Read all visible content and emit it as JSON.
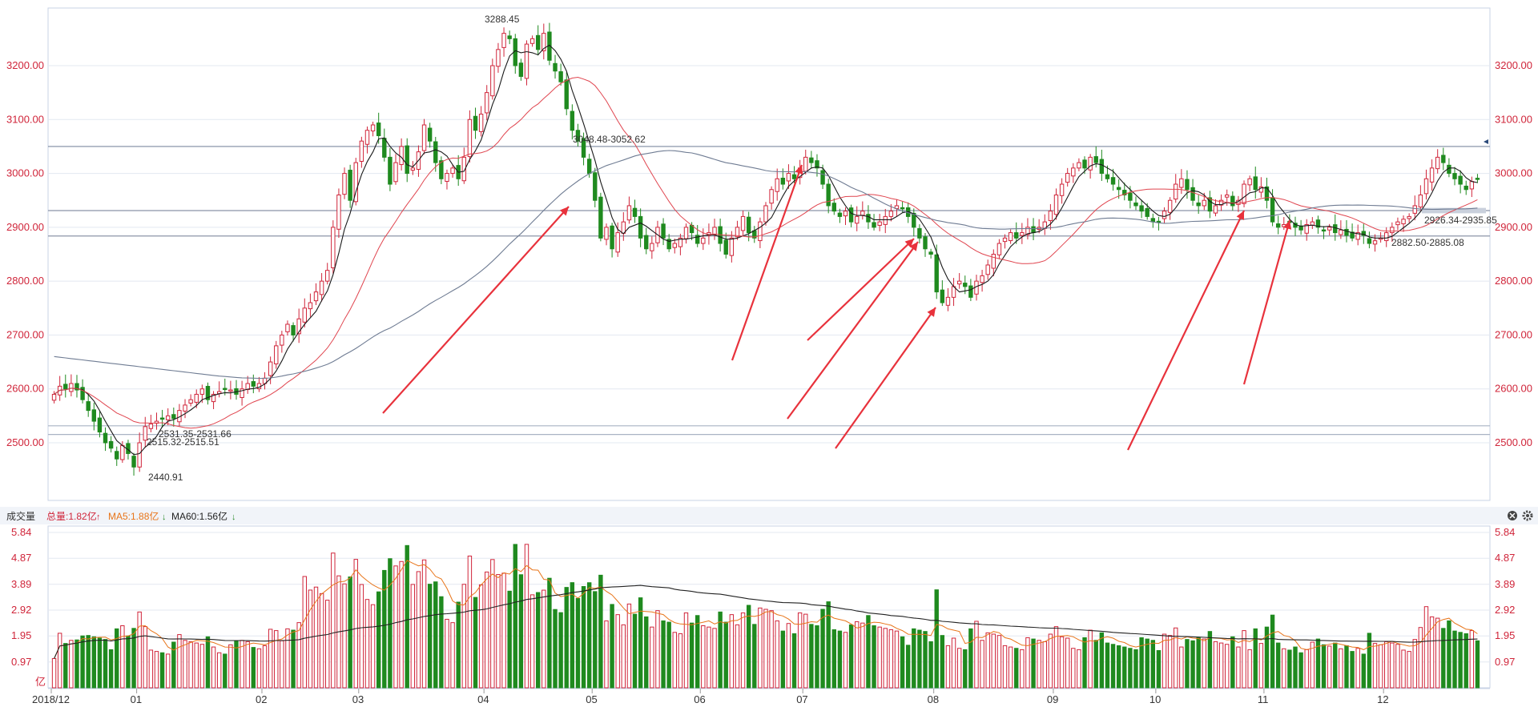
{
  "price_panel": {
    "y_ticks": [
      "3200.00",
      "3100.00",
      "3000.00",
      "2900.00",
      "2800.00",
      "2700.00",
      "2600.00",
      "2500.00"
    ],
    "annotations": {
      "high": "3288.45",
      "low": "2440.91",
      "band_high": "3048.48-3052.62",
      "band_low_1": "2531.35-2531.66",
      "band_low_2": "2515.32-2515.51",
      "band_mid_1": "2926.34-2935.85",
      "band_mid_2": "2882.50-2885.08"
    }
  },
  "volume_panel": {
    "title": "成交量",
    "total_label": "总量:1.82亿",
    "ma5_label": "MA5:1.88亿",
    "ma60_label": "MA60:1.56亿",
    "y_ticks": [
      "5.84",
      "4.87",
      "3.89",
      "2.92",
      "1.95",
      "0.97"
    ],
    "unit": "亿",
    "colors": {
      "total": "#d0253a",
      "ma5": "#e8751a",
      "ma60": "#222222"
    }
  },
  "x_axis": {
    "labels": [
      "2018/12",
      "01",
      "02",
      "03",
      "04",
      "05",
      "06",
      "07",
      "08",
      "09",
      "10",
      "11",
      "12"
    ]
  },
  "chart_data": {
    "type": "candlestick",
    "price_range": [
      2420,
      3300
    ],
    "volume_range": [
      0,
      5.84
    ],
    "months": [
      {
        "label": "2018/12",
        "start": 0,
        "closes": [
          2590,
          2605,
          2600,
          2610,
          2598,
          2580,
          2560,
          2540,
          2520,
          2500,
          2490,
          2470,
          2495,
          2480,
          2455
        ]
      },
      {
        "label": "01",
        "start": 15,
        "closes": [
          2500,
          2530,
          2535,
          2540,
          2545,
          2550,
          2545,
          2560,
          2570,
          2580,
          2590,
          2600,
          2580,
          2590,
          2595,
          2600,
          2598,
          2590,
          2600,
          2610,
          2605,
          2610
        ]
      },
      {
        "label": "02",
        "start": 37,
        "closes": [
          2620,
          2650,
          2680,
          2700,
          2720,
          2700,
          2730,
          2750,
          2760,
          2780,
          2800,
          2820,
          2900,
          2960,
          3000,
          2950,
          3020
        ]
      },
      {
        "label": "03",
        "start": 54,
        "closes": [
          3060,
          3080,
          3090,
          3070,
          3030,
          2980,
          3020,
          3050,
          3000,
          3010,
          3040,
          3090,
          3060,
          3020,
          2990,
          3000,
          3010,
          2990,
          3030,
          3100,
          3080,
          3110
        ]
      },
      {
        "label": "04",
        "start": 76,
        "closes": [
          3150,
          3200,
          3230,
          3260,
          3250,
          3200,
          3180,
          3240,
          3250,
          3230,
          3260,
          3210,
          3190,
          3170,
          3120,
          3080,
          3060,
          3030,
          3000
        ]
      },
      {
        "label": "05",
        "start": 95,
        "closes": [
          2950,
          2880,
          2900,
          2860,
          2890,
          2910,
          2940,
          2920,
          2880,
          2860,
          2870,
          2900,
          2880,
          2860,
          2870,
          2880,
          2900,
          2890,
          2870
        ]
      },
      {
        "label": "06",
        "start": 114,
        "closes": [
          2880,
          2890,
          2900,
          2870,
          2850,
          2880,
          2900,
          2920,
          2890,
          2880,
          2910,
          2940,
          2970,
          2990,
          2980,
          3000,
          2990,
          3010
        ]
      },
      {
        "label": "07",
        "start": 132,
        "closes": [
          3030,
          3020,
          3010,
          2980,
          2940,
          2930,
          2920,
          2930,
          2910,
          2920,
          2930,
          2910,
          2900,
          2910,
          2920,
          2930,
          2940,
          2935,
          2920,
          2900,
          2880,
          2860,
          2850
        ]
      },
      {
        "label": "08",
        "start": 155,
        "closes": [
          2780,
          2760,
          2770,
          2790,
          2800,
          2790,
          2770,
          2800,
          2810,
          2830,
          2850,
          2870,
          2880,
          2890,
          2880,
          2890,
          2900,
          2890,
          2900,
          2910,
          2930
        ]
      },
      {
        "label": "09",
        "start": 176,
        "closes": [
          2960,
          2980,
          3000,
          3010,
          3020,
          3010,
          3030,
          3020,
          3000,
          2990,
          2980,
          2970,
          2960,
          2950,
          2940,
          2930,
          2920,
          2910
        ]
      },
      {
        "label": "10",
        "start": 194,
        "closes": [
          2910,
          2930,
          2950,
          2980,
          2990,
          2970,
          2950,
          2940,
          2950,
          2930,
          2940,
          2950,
          2960,
          2940,
          2950,
          2980,
          2990,
          2970,
          2975
        ]
      },
      {
        "label": "11",
        "start": 213,
        "closes": [
          2950,
          2910,
          2900,
          2905,
          2910,
          2900,
          2895,
          2905,
          2910,
          2900,
          2895,
          2900,
          2890,
          2895,
          2885,
          2880,
          2890,
          2885,
          2870,
          2875,
          2880
        ]
      },
      {
        "label": "12",
        "start": 234,
        "closes": [
          2890,
          2900,
          2910,
          2915,
          2920,
          2940,
          2960,
          2990,
          3010,
          3030,
          3020,
          3000,
          2990,
          2980,
          2970,
          2985,
          2990
        ]
      }
    ],
    "volume_series": [
      {
        "name": "总量"
      },
      {
        "name": "MA5"
      },
      {
        "name": "MA60"
      }
    ]
  }
}
